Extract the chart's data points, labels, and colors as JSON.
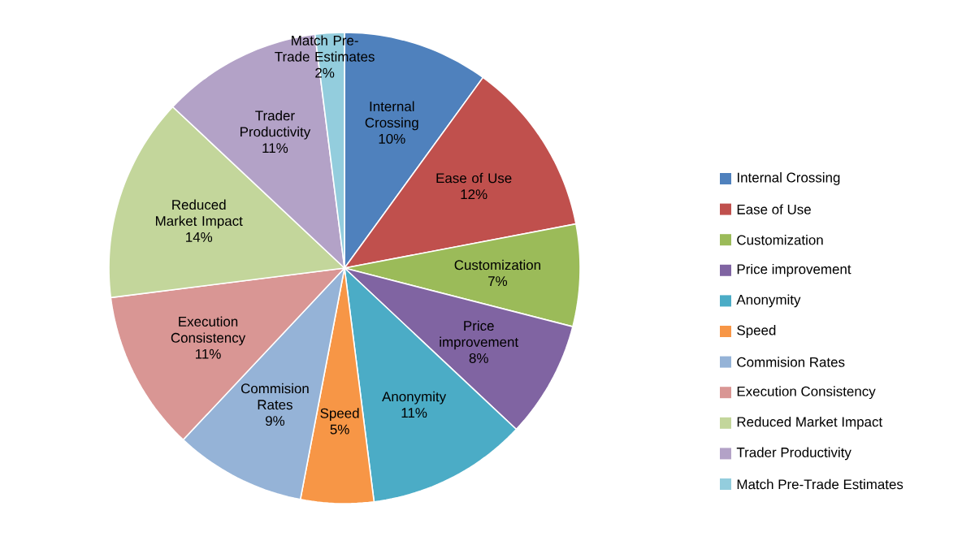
{
  "chart_data": {
    "type": "pie",
    "categories": [
      "Internal Crossing",
      "Ease of Use",
      "Customization",
      "Price improvement",
      "Anonymity",
      "Speed",
      "Commision Rates",
      "Execution Consistency",
      "Reduced Market Impact",
      "Trader Productivity",
      "Match Pre-Trade Estimates"
    ],
    "values": [
      10,
      12,
      7,
      8,
      11,
      5,
      9,
      11,
      14,
      11,
      2
    ],
    "value_labels": [
      "10%",
      "12%",
      "7%",
      "8%",
      "11%",
      "5%",
      "9%",
      "11%",
      "14%",
      "11%",
      "2%"
    ],
    "colors": [
      "#4f81bd",
      "#c0504d",
      "#9bbb59",
      "#8064a2",
      "#4bacc6",
      "#f79646",
      "#95b3d7",
      "#d99694",
      "#c3d69b",
      "#b3a2c7",
      "#93cddd"
    ],
    "legend": "right"
  }
}
